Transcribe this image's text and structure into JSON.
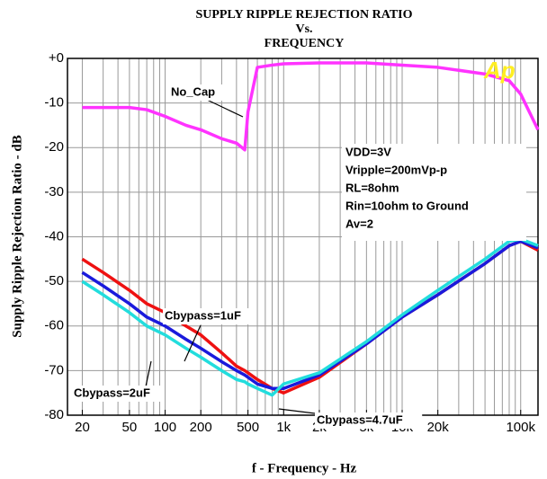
{
  "chart_data": {
    "type": "line",
    "title": [
      "SUPPLY RIPPLE REJECTION RATIO",
      "Vs.",
      "FREQUENCY"
    ],
    "x_label": "f - Frequency - Hz",
    "y_label": "Supply Ripple Rejection Ratio - dB",
    "log_x": true,
    "grid": true,
    "xlim": [
      15,
      140000
    ],
    "ylim": [
      -80,
      0
    ],
    "xticks": [
      20,
      50,
      100,
      200,
      500,
      {
        "value": 1000,
        "label": "1k"
      },
      {
        "value": 2000,
        "label": "2k"
      },
      {
        "value": 5000,
        "label": "5k"
      },
      {
        "value": 10000,
        "label": "10k"
      },
      {
        "value": 20000,
        "label": "20k"
      },
      {
        "value": 100000,
        "label": "100k"
      }
    ],
    "yticks": [
      {
        "value": 0,
        "label": "+0"
      },
      -10,
      -20,
      -30,
      -40,
      -50,
      -60,
      -70,
      -80
    ],
    "x": [
      20,
      30,
      50,
      70,
      100,
      150,
      200,
      300,
      400,
      470,
      500,
      600,
      800,
      1000,
      2000,
      5000,
      10000,
      20000,
      50000,
      80000,
      100000,
      140000
    ],
    "series": [
      {
        "name": "No_Cap",
        "color": "#ff33ff",
        "values": [
          -11,
          -11,
          -11,
          -11.5,
          -13,
          -15,
          -16,
          -18,
          -19,
          -20.5,
          -12,
          -2,
          -1.5,
          -1.2,
          -1,
          -1,
          -1.5,
          -2,
          -3.5,
          -5,
          -8,
          -16
        ]
      },
      {
        "name": "Cbypass=1uF",
        "color": "#ee1111",
        "values": [
          -45,
          -48,
          -52,
          -55,
          -57,
          -60,
          -62,
          -66,
          -69,
          -70,
          -70.5,
          -72,
          -74,
          -75,
          -71.5,
          -64,
          -58,
          -53,
          -46,
          -42,
          -41,
          -43
        ]
      },
      {
        "name": "Cbypass=2uF",
        "color": "#1a1adc",
        "values": [
          -48,
          -51,
          -55,
          -58,
          -60,
          -63,
          -65,
          -68,
          -70,
          -71,
          -71.5,
          -73,
          -74,
          -74,
          -71,
          -64,
          -58,
          -53,
          -46,
          -42,
          -41,
          -42.5
        ]
      },
      {
        "name": "Cbypass=4.7uF",
        "color": "#22dddd",
        "values": [
          -50,
          -53,
          -57,
          -60,
          -62,
          -65,
          -67,
          -70,
          -72,
          -72.5,
          -73,
          -74,
          -75.5,
          -73,
          -70.5,
          -63.5,
          -57.5,
          -52,
          -45,
          -41,
          -40.5,
          -42
        ]
      }
    ],
    "annotations": [
      "VDD=3V",
      "Vripple=200mVp-p",
      "RL=8ohm",
      "Rin=10ohm to Ground",
      "Av=2"
    ],
    "logo": "Ap"
  }
}
